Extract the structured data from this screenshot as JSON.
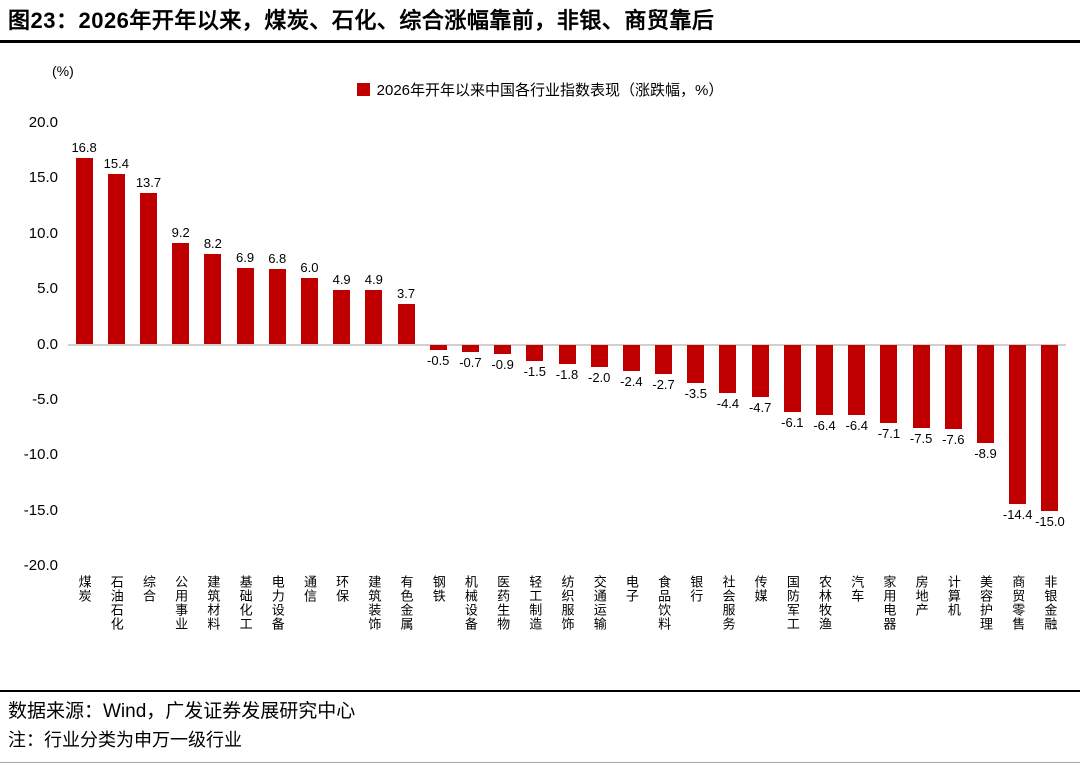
{
  "header": {
    "title": "图23：2026年开年以来，煤炭、石化、综合涨幅靠前，非银、商贸靠后"
  },
  "chart_data": {
    "type": "bar",
    "title": "2026年开年以来中国各行业指数表现（涨跌幅，%）",
    "unit_label": "(%)",
    "categories": [
      "煤炭",
      "石油石化",
      "综合",
      "公用事业",
      "建筑材料",
      "基础化工",
      "电力设备",
      "通信",
      "环保",
      "建筑装饰",
      "有色金属",
      "钢铁",
      "机械设备",
      "医药生物",
      "轻工制造",
      "纺织服饰",
      "交通运输",
      "电子",
      "食品饮料",
      "银行",
      "社会服务",
      "传媒",
      "国防军工",
      "农林牧渔",
      "汽车",
      "家用电器",
      "房地产",
      "计算机",
      "美容护理",
      "商贸零售",
      "非银金融"
    ],
    "values": [
      16.8,
      15.4,
      13.7,
      9.2,
      8.2,
      6.9,
      6.8,
      6.0,
      4.9,
      4.9,
      3.7,
      -0.5,
      -0.7,
      -0.9,
      -1.5,
      -1.8,
      -2.0,
      -2.4,
      -2.7,
      -3.5,
      -4.4,
      -4.7,
      -6.1,
      -6.4,
      -6.4,
      -7.1,
      -7.5,
      -7.6,
      -8.9,
      -14.4,
      -15.0
    ],
    "ylim": [
      -20,
      20
    ],
    "yticks": [
      20.0,
      15.0,
      10.0,
      5.0,
      0.0,
      -5.0,
      -10.0,
      -15.0,
      -20.0
    ],
    "bar_color": "#C00000",
    "grid": false,
    "legend_position": "top"
  },
  "footer": {
    "source": "数据来源：Wind，广发证券发展研究中心",
    "note": "注：行业分类为申万一级行业"
  }
}
